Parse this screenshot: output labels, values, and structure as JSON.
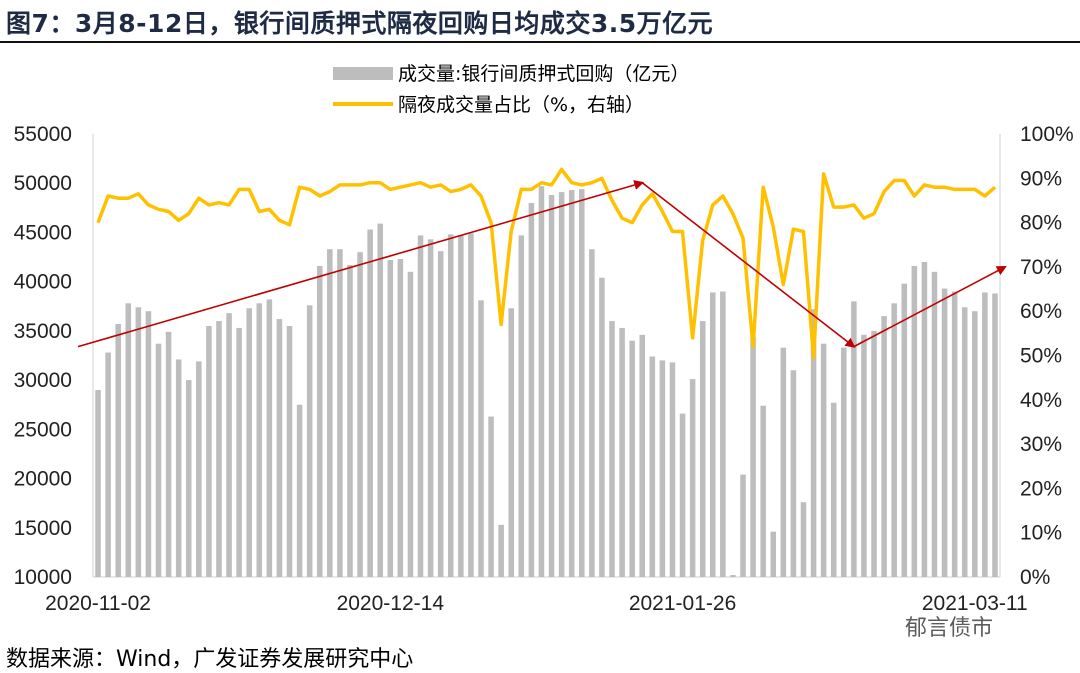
{
  "title": "图7：3月8-12日，银行间质押式隔夜回购日均成交3.5万亿元",
  "source": "数据来源：Wind，广发证券发展研究中心",
  "watermark": "郁言债市",
  "chart_data": {
    "type": "bar+line",
    "legend": [
      {
        "name": "成交量:银行间质押式回购（亿元）",
        "kind": "bar",
        "color": "#bdbdbd"
      },
      {
        "name": "隔夜成交量占比（%，右轴）",
        "kind": "line",
        "color": "#ffc000"
      }
    ],
    "y_left": {
      "min": 10000,
      "max": 55000,
      "ticks": [
        "55000",
        "50000",
        "45000",
        "40000",
        "35000",
        "30000",
        "25000",
        "20000",
        "15000",
        "10000"
      ]
    },
    "y_right": {
      "min": 0,
      "max": 100,
      "ticks": [
        "100%",
        "90%",
        "80%",
        "70%",
        "60%",
        "50%",
        "40%",
        "30%",
        "20%",
        "10%",
        "0%"
      ]
    },
    "x_ticks": [
      {
        "label": "2020-11-02",
        "index": 0
      },
      {
        "label": "2020-12-14",
        "index": 29
      },
      {
        "label": "2021-01-26",
        "index": 58
      },
      {
        "label": "2021-03-11",
        "index": 87
      }
    ],
    "n": 90,
    "bars": [
      29000,
      32800,
      35700,
      37800,
      37400,
      37000,
      33700,
      34900,
      32100,
      30000,
      31900,
      35500,
      36000,
      36800,
      35300,
      37300,
      37800,
      38200,
      36200,
      35500,
      27500,
      37600,
      41600,
      43300,
      43300,
      41700,
      43000,
      45300,
      45900,
      42200,
      42300,
      41000,
      44700,
      44300,
      43100,
      44800,
      44700,
      44900,
      38100,
      26300,
      15300,
      37300,
      44700,
      48000,
      49700,
      48800,
      49100,
      49300,
      49400,
      43300,
      40400,
      36000,
      35300,
      34000,
      34600,
      32400,
      32000,
      31800,
      26600,
      30100,
      36000,
      38900,
      39000,
      10200,
      20400,
      34400,
      27400,
      14600,
      33300,
      31000,
      17600,
      37200,
      33700,
      27700,
      33300,
      38000,
      34600,
      35000,
      36500,
      37800,
      39800,
      41600,
      42000,
      41000,
      39300,
      39000,
      37400,
      37000,
      38900,
      38800
    ],
    "overnight_pct": [
      80,
      86,
      85.5,
      85.5,
      86.5,
      84,
      83,
      82.5,
      80.5,
      82,
      85.5,
      84,
      84.5,
      84,
      87.5,
      87.5,
      82.5,
      83,
      80.5,
      79.5,
      88,
      87.5,
      86,
      87,
      88.5,
      88.5,
      88.5,
      89,
      89,
      87.5,
      88,
      88.5,
      89,
      88,
      88.5,
      87,
      87.5,
      88.5,
      86,
      80,
      57,
      78,
      87.5,
      87.5,
      89,
      88.5,
      92,
      89,
      88.5,
      89,
      90,
      85,
      81,
      80,
      84,
      86.5,
      82.5,
      78,
      78,
      54,
      76,
      84,
      86,
      82,
      76.5,
      52,
      88,
      79,
      66,
      78.5,
      78,
      49.5,
      91,
      83.5,
      83.5,
      84,
      81,
      82,
      87,
      89.5,
      89.5,
      86,
      88.5,
      88,
      88,
      87.5,
      87.5,
      87.5,
      86,
      88
    ],
    "annotations": [
      {
        "type": "arrow",
        "from": {
          "index": 0,
          "pct": 52
        },
        "to": {
          "index": 54,
          "pct": 89
        },
        "color": "#c00000"
      },
      {
        "type": "arrow",
        "from": {
          "index": 54,
          "pct": 89
        },
        "to": {
          "index": 75,
          "pct": 52
        },
        "color": "#c00000"
      },
      {
        "type": "arrow",
        "from": {
          "index": 75,
          "pct": 52
        },
        "to": {
          "index": 90,
          "pct": 70
        },
        "color": "#c00000"
      }
    ]
  }
}
